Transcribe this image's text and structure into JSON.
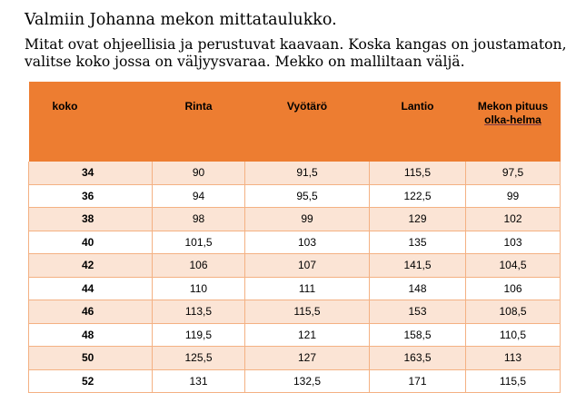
{
  "heading": "Valmiin Johanna mekon mittataulukko.",
  "intro_lines": [
    "Mitat ovat ohjeellisia ja perustuvat kaavaan. Koska kangas on joustamaton,",
    "valitse koko jossa on väljyysvaraa. Mekko on malliltaan väljä."
  ],
  "table": {
    "headers": [
      "koko",
      "Rinta",
      "Vyötärö",
      "Lantio"
    ],
    "last_header": [
      "Mekon pituus",
      "olka-helma"
    ],
    "rows": [
      [
        "34",
        "90",
        "91,5",
        "115,5",
        "97,5"
      ],
      [
        "36",
        "94",
        "95,5",
        "122,5",
        "99"
      ],
      [
        "38",
        "98",
        "99",
        "129",
        "102"
      ],
      [
        "40",
        "101,5",
        "103",
        "135",
        "103"
      ],
      [
        "42",
        "106",
        "107",
        "141,5",
        "104,5"
      ],
      [
        "44",
        "110",
        "111",
        "148",
        "106"
      ],
      [
        "46",
        "113,5",
        "115,5",
        "153",
        "108,5"
      ],
      [
        "48",
        "119,5",
        "121",
        "158,5",
        "110,5"
      ],
      [
        "50",
        "125,5",
        "127",
        "163,5",
        "113"
      ],
      [
        "52",
        "131",
        "132,5",
        "171",
        "115,5"
      ]
    ]
  },
  "colors": {
    "header_fill": "#ED7D31",
    "band_fill": "#FBE4D5",
    "grid_line": "#F4B183"
  }
}
